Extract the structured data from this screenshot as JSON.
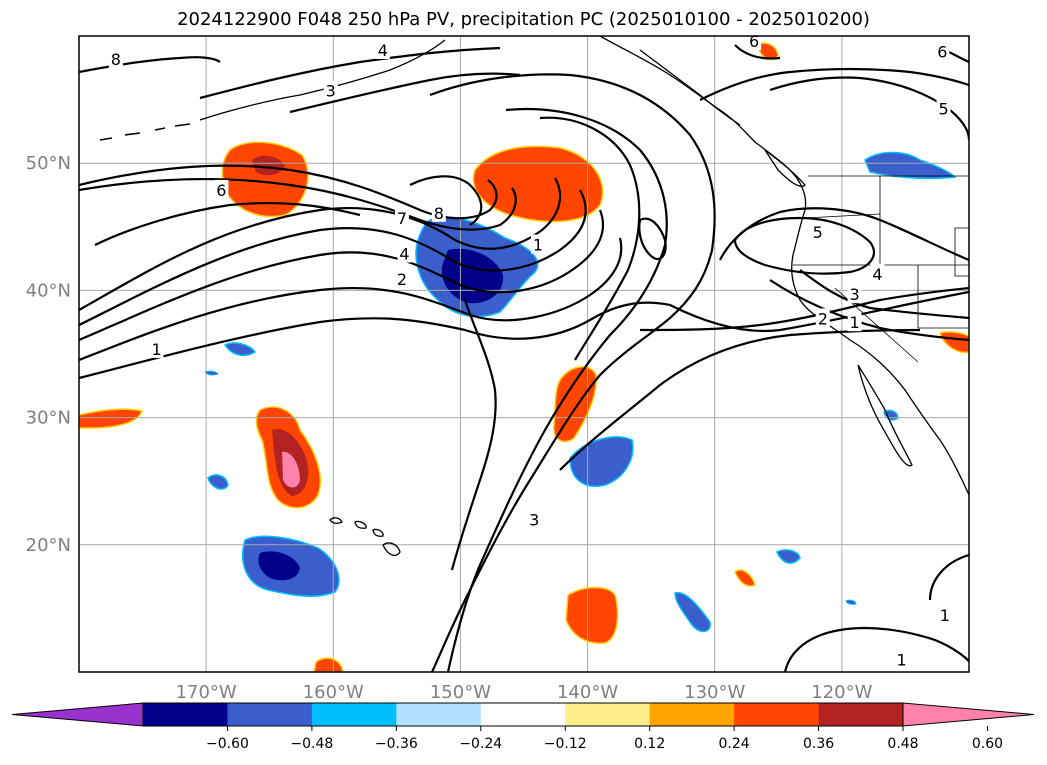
{
  "title": "2024122900 F048 250 hPa PV, precipitation PC (2025010100 - 2025010200)",
  "map": {
    "lon_range": [
      -180,
      -110
    ],
    "lat_range": [
      10,
      60
    ],
    "lon_ticks": [
      {
        "value": -170,
        "label": "170°W"
      },
      {
        "value": -160,
        "label": "160°W"
      },
      {
        "value": -150,
        "label": "150°W"
      },
      {
        "value": -140,
        "label": "140°W"
      },
      {
        "value": -130,
        "label": "130°W"
      },
      {
        "value": -120,
        "label": "120°W"
      }
    ],
    "lat_ticks": [
      {
        "value": 20,
        "label": "20°N"
      },
      {
        "value": 30,
        "label": "30°N"
      },
      {
        "value": 40,
        "label": "40°N"
      },
      {
        "value": 50,
        "label": "50°N"
      }
    ],
    "grid": true,
    "tick_color": "#808080"
  },
  "pv_contour_labels": [
    {
      "text": "8",
      "lon": -177.1,
      "lat": 58.2
    },
    {
      "text": "4",
      "lon": -156.1,
      "lat": 58.9
    },
    {
      "text": "3",
      "lon": -160.2,
      "lat": 55.7
    },
    {
      "text": "6",
      "lon": -126.9,
      "lat": 59.6
    },
    {
      "text": "6",
      "lon": -112.1,
      "lat": 58.8
    },
    {
      "text": "5",
      "lon": -112.0,
      "lat": 54.3
    },
    {
      "text": "6",
      "lon": -168.8,
      "lat": 47.9
    },
    {
      "text": "7",
      "lon": -154.6,
      "lat": 45.7
    },
    {
      "text": "8",
      "lon": -151.7,
      "lat": 46.1
    },
    {
      "text": "4",
      "lon": -154.4,
      "lat": 42.9
    },
    {
      "text": "2",
      "lon": -154.6,
      "lat": 40.9
    },
    {
      "text": "1",
      "lon": -143.9,
      "lat": 43.6
    },
    {
      "text": "5",
      "lon": -121.9,
      "lat": 44.6
    },
    {
      "text": "4",
      "lon": -117.2,
      "lat": 41.3
    },
    {
      "text": "3",
      "lon": -119.0,
      "lat": 39.7
    },
    {
      "text": "2",
      "lon": -121.5,
      "lat": 37.8
    },
    {
      "text": "1",
      "lon": -119.0,
      "lat": 37.5
    },
    {
      "text": "1",
      "lon": -173.9,
      "lat": 35.4
    },
    {
      "text": "3",
      "lon": -144.2,
      "lat": 22.0
    },
    {
      "text": "1",
      "lon": -111.9,
      "lat": 14.5
    },
    {
      "text": "1",
      "lon": -115.3,
      "lat": 11.0
    }
  ],
  "colorbar": {
    "ticks": [
      "−0.60",
      "−0.48",
      "−0.36",
      "−0.24",
      "−0.12",
      "0.12",
      "0.24",
      "0.36",
      "0.48",
      "0.60"
    ],
    "colors": [
      "#9932cc",
      "#00008b",
      "#3a5fcd",
      "#00bfff",
      "#b0e2ff",
      "#ffffff",
      "#ffec8b",
      "#ffa500",
      "#ff4500",
      "#b22222",
      "#ff82ab"
    ]
  }
}
